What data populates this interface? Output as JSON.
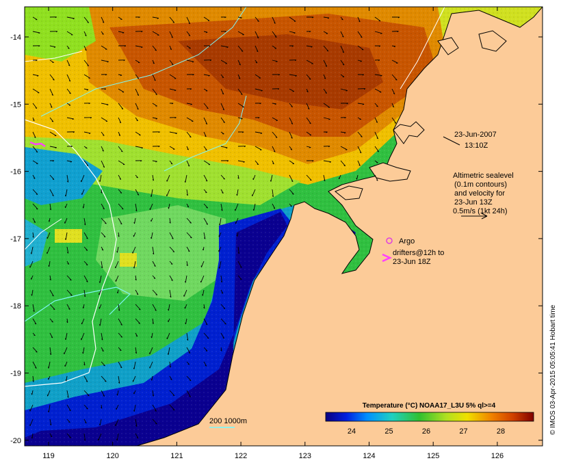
{
  "date_line": "23-Jun-2007",
  "time_line": "13:10Z",
  "altimetry_lines": [
    "Altimetric sealevel",
    "(0.1m contours)",
    "and velocity for",
    "23-Jun 13Z",
    "0.5m/s (1kt 24h)"
  ],
  "argo_label": "Argo",
  "drifter_lines": [
    "drifters@12h to",
    "23-Jun 18Z"
  ],
  "depth_label": "200  1000m",
  "colorbar": {
    "title": "Temperature (°C) NOAA17_L3U 5% ql>=4",
    "ticks": [
      "24",
      "25",
      "26",
      "27",
      "28"
    ]
  },
  "y_ticks": [
    "-14",
    "-15",
    "-16",
    "-17",
    "-18",
    "-19",
    "-20"
  ],
  "x_ticks": [
    "119",
    "120",
    "121",
    "122",
    "123",
    "124",
    "125",
    "126"
  ],
  "credit": "© IMOS 03-Apr-2015 05:05:41 Hobart time",
  "colors": {
    "land": "#fccb98",
    "coast": "#000000",
    "argo": "#e040e0",
    "drifter": "#ff40ff",
    "contour_200": "#7ff7f7",
    "contour_1000": "#ffffff"
  }
}
